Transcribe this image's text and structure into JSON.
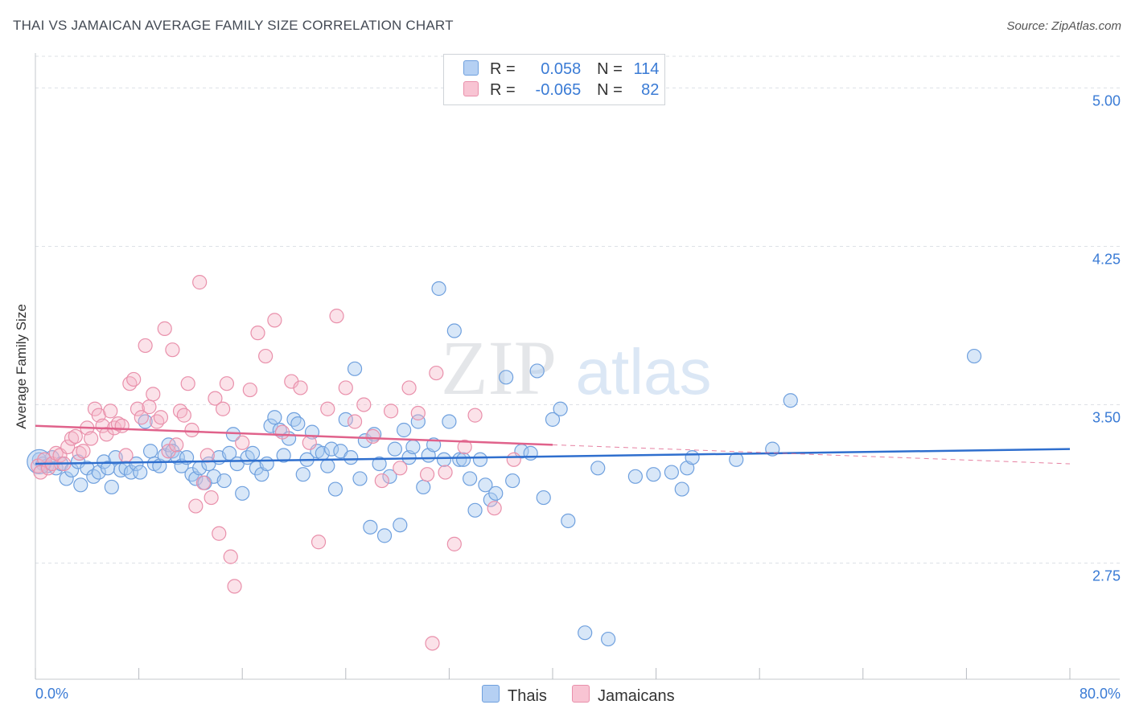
{
  "header": {
    "title": "THAI VS JAMAICAN AVERAGE FAMILY SIZE CORRELATION CHART",
    "source": "Source: ZipAtlas.com"
  },
  "legend": {
    "thai": {
      "r_label": "R =",
      "r_value": "0.058",
      "n_label": "N =",
      "n_value": "114"
    },
    "jamaican": {
      "r_label": "R =",
      "r_value": "-0.065",
      "n_label": "N =",
      "n_value": "82"
    }
  },
  "bottom_legend": {
    "thai": "Thais",
    "jamaican": "Jamaicans"
  },
  "watermark": {
    "zip": "ZIP",
    "atlas": "atlas"
  },
  "colors": {
    "thai_fill": "#a9c9f0",
    "thai_stroke": "#6fa0de",
    "thai_line": "#2f6fce",
    "jam_fill": "#f6b6c9",
    "jam_stroke": "#e990ab",
    "jam_line": "#e0628b",
    "axis_text": "#3a7bd5",
    "grid": "#dde1e6"
  },
  "chart_data": {
    "type": "scatter",
    "title": "THAI VS JAMAICAN AVERAGE FAMILY SIZE CORRELATION CHART",
    "xlabel": "",
    "ylabel": "Average Family Size",
    "xlim": [
      0,
      80
    ],
    "ylim": [
      2.2,
      5.15
    ],
    "x_tick_labels": [
      "0.0%",
      "80.0%"
    ],
    "y_ticks": [
      2.75,
      3.5,
      4.25,
      5.0
    ],
    "y_tick_labels": [
      "2.75",
      "3.50",
      "4.25",
      "5.00"
    ],
    "series": [
      {
        "name": "Thais",
        "r": 0.058,
        "n": 114,
        "trend": {
          "x": [
            0,
            80
          ],
          "y": [
            3.22,
            3.29
          ]
        },
        "points": [
          [
            0.3,
            3.24
          ],
          [
            0.6,
            3.22
          ],
          [
            0.9,
            3.21
          ],
          [
            1.3,
            3.25
          ],
          [
            1.6,
            3.2
          ],
          [
            2.0,
            3.22
          ],
          [
            2.4,
            3.15
          ],
          [
            2.8,
            3.19
          ],
          [
            3.3,
            3.23
          ],
          [
            3.5,
            3.12
          ],
          [
            4.0,
            3.2
          ],
          [
            4.5,
            3.16
          ],
          [
            4.9,
            3.18
          ],
          [
            5.3,
            3.23
          ],
          [
            5.6,
            3.2
          ],
          [
            5.9,
            3.11
          ],
          [
            6.2,
            3.25
          ],
          [
            6.6,
            3.19
          ],
          [
            7.0,
            3.2
          ],
          [
            7.4,
            3.18
          ],
          [
            7.8,
            3.22
          ],
          [
            8.1,
            3.18
          ],
          [
            8.5,
            3.42
          ],
          [
            8.9,
            3.28
          ],
          [
            9.2,
            3.22
          ],
          [
            9.6,
            3.21
          ],
          [
            10.0,
            3.26
          ],
          [
            10.3,
            3.31
          ],
          [
            10.6,
            3.28
          ],
          [
            11.0,
            3.25
          ],
          [
            11.3,
            3.21
          ],
          [
            11.7,
            3.25
          ],
          [
            12.1,
            3.17
          ],
          [
            12.4,
            3.15
          ],
          [
            12.7,
            3.2
          ],
          [
            13.1,
            3.13
          ],
          [
            13.4,
            3.22
          ],
          [
            13.8,
            3.16
          ],
          [
            14.2,
            3.25
          ],
          [
            14.6,
            3.14
          ],
          [
            15.0,
            3.27
          ],
          [
            15.3,
            3.36
          ],
          [
            15.6,
            3.22
          ],
          [
            16.0,
            3.08
          ],
          [
            16.4,
            3.25
          ],
          [
            16.8,
            3.27
          ],
          [
            17.1,
            3.2
          ],
          [
            17.5,
            3.17
          ],
          [
            17.9,
            3.22
          ],
          [
            18.2,
            3.4
          ],
          [
            18.5,
            3.44
          ],
          [
            18.9,
            3.38
          ],
          [
            19.2,
            3.26
          ],
          [
            19.6,
            3.34
          ],
          [
            20.0,
            3.43
          ],
          [
            20.3,
            3.41
          ],
          [
            20.7,
            3.17
          ],
          [
            21.0,
            3.24
          ],
          [
            21.4,
            3.37
          ],
          [
            21.8,
            3.28
          ],
          [
            22.2,
            3.27
          ],
          [
            22.6,
            3.21
          ],
          [
            22.9,
            3.29
          ],
          [
            23.2,
            3.1
          ],
          [
            23.6,
            3.28
          ],
          [
            24.0,
            3.43
          ],
          [
            24.4,
            3.25
          ],
          [
            24.7,
            3.67
          ],
          [
            25.1,
            3.15
          ],
          [
            25.5,
            3.33
          ],
          [
            25.9,
            2.92
          ],
          [
            26.2,
            3.36
          ],
          [
            26.6,
            3.22
          ],
          [
            27.0,
            2.88
          ],
          [
            27.4,
            3.16
          ],
          [
            27.8,
            3.29
          ],
          [
            28.2,
            2.93
          ],
          [
            28.5,
            3.38
          ],
          [
            28.9,
            3.25
          ],
          [
            29.2,
            3.3
          ],
          [
            29.6,
            3.42
          ],
          [
            30.0,
            3.11
          ],
          [
            30.4,
            3.26
          ],
          [
            30.8,
            3.31
          ],
          [
            31.2,
            4.05
          ],
          [
            31.6,
            3.24
          ],
          [
            32.0,
            3.42
          ],
          [
            32.4,
            3.85
          ],
          [
            32.8,
            3.24
          ],
          [
            33.1,
            3.24
          ],
          [
            33.6,
            3.15
          ],
          [
            34.0,
            3.0
          ],
          [
            34.4,
            3.24
          ],
          [
            34.8,
            3.12
          ],
          [
            35.2,
            3.05
          ],
          [
            35.6,
            3.08
          ],
          [
            36.4,
            3.63
          ],
          [
            36.9,
            3.14
          ],
          [
            37.6,
            3.28
          ],
          [
            38.3,
            3.27
          ],
          [
            38.8,
            3.66
          ],
          [
            39.3,
            3.06
          ],
          [
            40.0,
            3.43
          ],
          [
            40.6,
            3.48
          ],
          [
            41.2,
            2.95
          ],
          [
            42.5,
            2.42
          ],
          [
            43.5,
            3.2
          ],
          [
            44.3,
            2.39
          ],
          [
            46.4,
            3.16
          ],
          [
            47.8,
            3.17
          ],
          [
            49.2,
            3.18
          ],
          [
            50.0,
            3.1
          ],
          [
            50.4,
            3.2
          ],
          [
            50.8,
            3.25
          ],
          [
            54.2,
            3.24
          ],
          [
            57.0,
            3.29
          ],
          [
            58.4,
            3.52
          ],
          [
            72.6,
            3.73
          ]
        ]
      },
      {
        "name": "Jamaicans",
        "r": -0.065,
        "n": 82,
        "trend": {
          "x": [
            0,
            40
          ],
          "y": [
            3.4,
            3.31
          ]
        },
        "trend_dashed": {
          "x": [
            40,
            80
          ],
          "y": [
            3.31,
            3.22
          ]
        },
        "points": [
          [
            0.2,
            3.21
          ],
          [
            0.4,
            3.18
          ],
          [
            0.7,
            3.24
          ],
          [
            1.0,
            3.2
          ],
          [
            1.3,
            3.22
          ],
          [
            1.6,
            3.27
          ],
          [
            1.9,
            3.26
          ],
          [
            2.2,
            3.22
          ],
          [
            2.5,
            3.3
          ],
          [
            2.8,
            3.34
          ],
          [
            3.1,
            3.35
          ],
          [
            3.4,
            3.27
          ],
          [
            3.7,
            3.28
          ],
          [
            4.0,
            3.39
          ],
          [
            4.3,
            3.34
          ],
          [
            4.6,
            3.48
          ],
          [
            4.9,
            3.45
          ],
          [
            5.2,
            3.4
          ],
          [
            5.5,
            3.36
          ],
          [
            5.8,
            3.47
          ],
          [
            6.1,
            3.39
          ],
          [
            6.4,
            3.41
          ],
          [
            6.7,
            3.4
          ],
          [
            7.0,
            3.26
          ],
          [
            7.3,
            3.6
          ],
          [
            7.6,
            3.62
          ],
          [
            7.9,
            3.48
          ],
          [
            8.2,
            3.44
          ],
          [
            8.5,
            3.78
          ],
          [
            8.8,
            3.49
          ],
          [
            9.1,
            3.55
          ],
          [
            9.4,
            3.42
          ],
          [
            9.7,
            3.44
          ],
          [
            10.0,
            3.86
          ],
          [
            10.3,
            3.28
          ],
          [
            10.6,
            3.76
          ],
          [
            10.9,
            3.31
          ],
          [
            11.2,
            3.47
          ],
          [
            11.5,
            3.45
          ],
          [
            11.8,
            3.6
          ],
          [
            12.1,
            3.38
          ],
          [
            12.4,
            3.02
          ],
          [
            12.7,
            4.08
          ],
          [
            13.0,
            3.13
          ],
          [
            13.3,
            3.26
          ],
          [
            13.6,
            3.06
          ],
          [
            13.9,
            3.53
          ],
          [
            14.2,
            2.89
          ],
          [
            14.5,
            3.48
          ],
          [
            14.8,
            3.6
          ],
          [
            15.1,
            2.78
          ],
          [
            15.4,
            2.64
          ],
          [
            16.0,
            3.32
          ],
          [
            16.6,
            3.57
          ],
          [
            17.2,
            3.84
          ],
          [
            17.8,
            3.73
          ],
          [
            18.5,
            3.9
          ],
          [
            19.1,
            3.37
          ],
          [
            19.8,
            3.61
          ],
          [
            20.5,
            3.58
          ],
          [
            21.2,
            3.32
          ],
          [
            21.9,
            2.85
          ],
          [
            22.6,
            3.48
          ],
          [
            23.3,
            3.92
          ],
          [
            24.0,
            3.58
          ],
          [
            24.7,
            3.42
          ],
          [
            25.4,
            3.5
          ],
          [
            26.1,
            3.35
          ],
          [
            26.8,
            3.14
          ],
          [
            27.5,
            3.47
          ],
          [
            28.2,
            3.2
          ],
          [
            28.9,
            3.58
          ],
          [
            29.6,
            3.46
          ],
          [
            30.3,
            3.17
          ],
          [
            31.0,
            3.65
          ],
          [
            31.7,
            3.18
          ],
          [
            32.4,
            2.84
          ],
          [
            33.2,
            3.3
          ],
          [
            34.0,
            3.45
          ],
          [
            35.5,
            3.01
          ],
          [
            37.0,
            3.24
          ],
          [
            30.7,
            2.37
          ]
        ]
      }
    ]
  }
}
